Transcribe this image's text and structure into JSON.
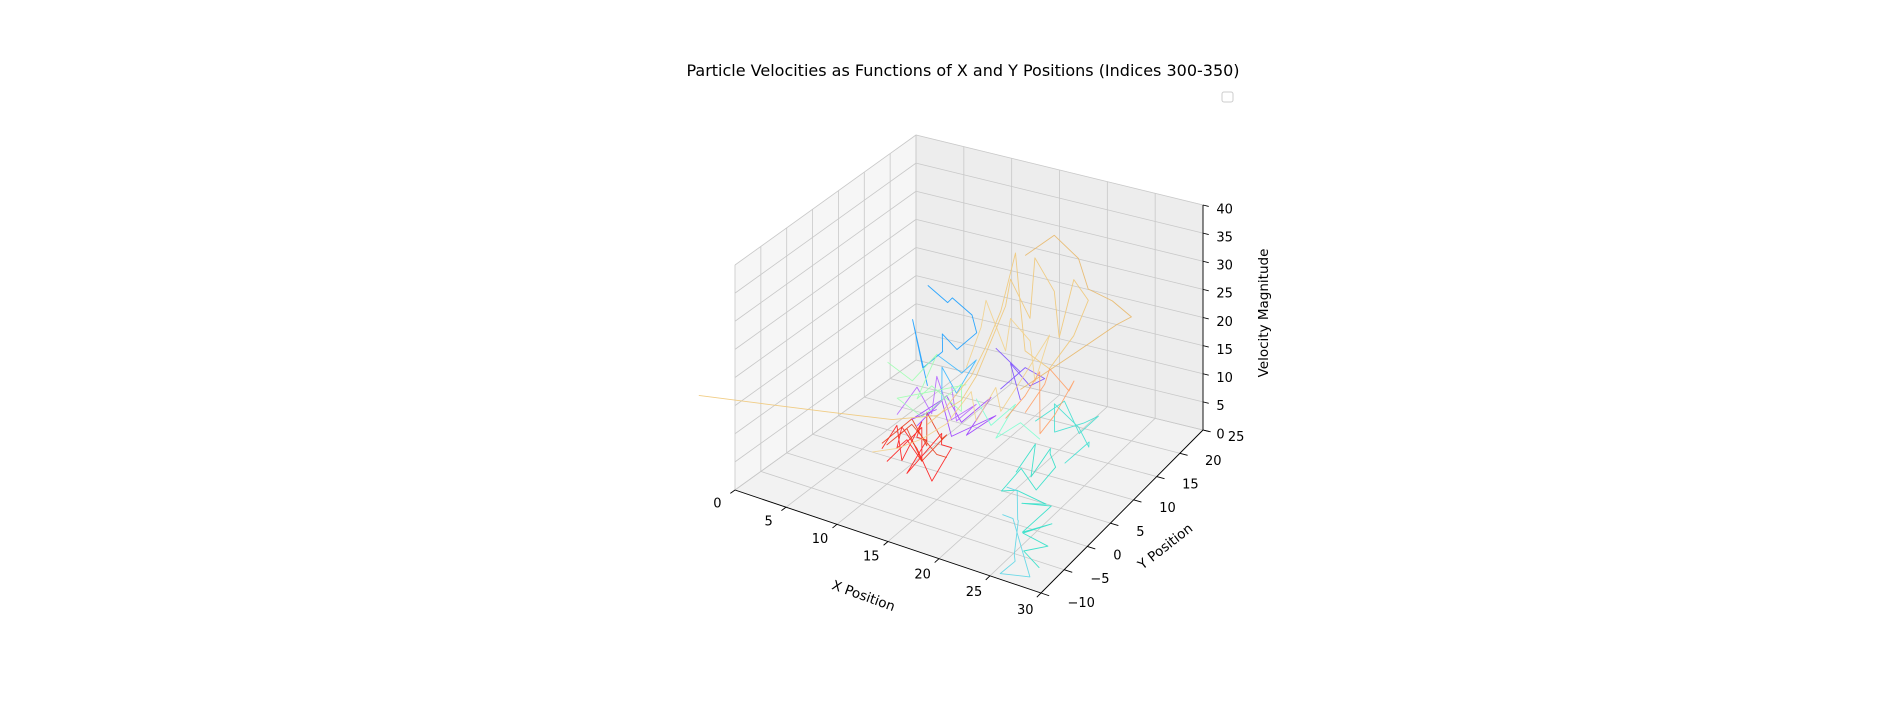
{
  "chart_data": {
    "type": "line3d",
    "title": "Particle Velocities as Functions of X and Y Positions (Indices 300-350)",
    "xlabel": "X Position",
    "ylabel": "Y Position",
    "zlabel": "Velocity Magnitude",
    "xlim": [
      0,
      30
    ],
    "ylim": [
      -10,
      25
    ],
    "zlim": [
      0,
      40
    ],
    "xticks": [
      "0",
      "5",
      "10",
      "15",
      "20",
      "25",
      "30"
    ],
    "yticks": [
      "−10",
      "−5",
      "0",
      "5",
      "10",
      "15",
      "20",
      "25"
    ],
    "zticks": [
      "0",
      "5",
      "10",
      "15",
      "20",
      "25",
      "30",
      "35",
      "40"
    ],
    "grid": true,
    "legend": "upper-right, empty",
    "series": [
      {
        "color": "#ff1a1a",
        "points": [
          [
            9,
            1,
            5
          ],
          [
            10,
            2,
            9
          ],
          [
            11,
            1,
            4
          ],
          [
            12,
            3,
            10
          ],
          [
            11,
            4,
            6
          ],
          [
            13,
            2,
            8
          ],
          [
            12,
            0,
            3
          ],
          [
            14,
            3,
            9
          ],
          [
            13,
            5,
            5
          ],
          [
            15,
            3,
            7
          ],
          [
            14,
            1,
            2
          ],
          [
            12,
            2,
            6
          ],
          [
            10,
            3,
            8
          ],
          [
            9,
            4,
            3
          ],
          [
            11,
            2,
            7
          ],
          [
            13,
            1,
            5
          ],
          [
            12,
            3,
            9
          ],
          [
            10,
            0,
            4
          ]
        ]
      },
      {
        "color": "#e83a1a",
        "points": [
          [
            8,
            3,
            4
          ],
          [
            10,
            5,
            8
          ],
          [
            12,
            4,
            5
          ],
          [
            11,
            6,
            9
          ],
          [
            13,
            5,
            6
          ],
          [
            14,
            4,
            8
          ],
          [
            12,
            3,
            3
          ],
          [
            10,
            4,
            7
          ],
          [
            9,
            2,
            5
          ],
          [
            11,
            3,
            9
          ],
          [
            13,
            4,
            4
          ],
          [
            15,
            2,
            6
          ]
        ]
      },
      {
        "color": "#9a3cff",
        "points": [
          [
            10,
            6,
            6
          ],
          [
            12,
            8,
            11
          ],
          [
            14,
            7,
            8
          ],
          [
            16,
            9,
            12
          ],
          [
            15,
            6,
            7
          ],
          [
            17,
            8,
            10
          ],
          [
            13,
            7,
            5
          ],
          [
            11,
            9,
            9
          ],
          [
            9,
            7,
            6
          ],
          [
            12,
            6,
            10
          ]
        ]
      },
      {
        "color": "#b566ff",
        "points": [
          [
            8,
            6,
            7
          ],
          [
            9,
            8,
            11
          ],
          [
            11,
            7,
            8
          ],
          [
            10,
            10,
            12
          ],
          [
            12,
            9,
            6
          ],
          [
            14,
            10,
            9
          ],
          [
            13,
            8,
            7
          ],
          [
            11,
            11,
            10
          ]
        ]
      },
      {
        "color": "#7b4dff",
        "points": [
          [
            15,
            12,
            18
          ],
          [
            17,
            13,
            14
          ],
          [
            16,
            11,
            12
          ],
          [
            18,
            12,
            16
          ],
          [
            19,
            14,
            13
          ],
          [
            17,
            15,
            10
          ],
          [
            16,
            13,
            15
          ],
          [
            18,
            11,
            11
          ]
        ]
      },
      {
        "color": "#1a9fff",
        "points": [
          [
            6,
            16,
            22
          ],
          [
            7,
            18,
            18
          ],
          [
            8,
            17,
            20
          ],
          [
            9,
            19,
            16
          ],
          [
            10,
            18,
            14
          ],
          [
            9,
            16,
            12
          ],
          [
            8,
            15,
            15
          ],
          [
            7,
            17,
            10
          ],
          [
            6,
            15,
            8
          ],
          [
            6,
            13,
            18
          ],
          [
            7,
            14,
            6
          ]
        ]
      },
      {
        "color": "#3ab8ff",
        "points": [
          [
            8,
            14,
            12
          ],
          [
            10,
            15,
            9
          ],
          [
            12,
            14,
            13
          ],
          [
            11,
            12,
            8
          ],
          [
            9,
            13,
            11
          ],
          [
            10,
            11,
            7
          ]
        ]
      },
      {
        "color": "#9fffb0",
        "points": [
          [
            5,
            10,
            12
          ],
          [
            7,
            11,
            9
          ],
          [
            9,
            12,
            14
          ],
          [
            8,
            10,
            7
          ],
          [
            10,
            9,
            11
          ],
          [
            12,
            11,
            6
          ],
          [
            11,
            13,
            9
          ],
          [
            9,
            9,
            5
          ],
          [
            7,
            8,
            8
          ],
          [
            13,
            10,
            12
          ]
        ]
      },
      {
        "color": "#7dffd0",
        "points": [
          [
            14,
            10,
            10
          ],
          [
            16,
            9,
            7
          ],
          [
            18,
            10,
            11
          ],
          [
            17,
            8,
            6
          ],
          [
            19,
            9,
            9
          ],
          [
            20,
            11,
            5
          ]
        ]
      },
      {
        "color": "#2ee0c8",
        "points": [
          [
            20,
            6,
            3
          ],
          [
            21,
            8,
            7
          ],
          [
            22,
            5,
            4
          ],
          [
            23,
            7,
            8
          ],
          [
            22,
            9,
            5
          ],
          [
            24,
            6,
            6
          ],
          [
            23,
            4,
            3
          ],
          [
            21,
            5,
            5
          ],
          [
            20,
            3,
            2
          ],
          [
            22,
            2,
            4
          ],
          [
            24,
            4,
            1
          ],
          [
            23,
            1,
            3
          ],
          [
            25,
            3,
            2
          ],
          [
            24,
            -1,
            0
          ],
          [
            26,
            1,
            1
          ],
          [
            25,
            -3,
            2
          ],
          [
            27,
            -2,
            0
          ],
          [
            26,
            -5,
            1
          ],
          [
            28,
            -6,
            0
          ]
        ]
      },
      {
        "color": "#40e0d0",
        "points": [
          [
            20,
            10,
            9
          ],
          [
            22,
            12,
            12
          ],
          [
            24,
            11,
            8
          ],
          [
            25,
            13,
            10
          ],
          [
            23,
            14,
            7
          ],
          [
            21,
            12,
            6
          ],
          [
            20,
            14,
            9
          ],
          [
            22,
            15,
            5
          ],
          [
            24,
            13,
            4
          ],
          [
            25,
            11,
            7
          ],
          [
            23,
            10,
            3
          ]
        ]
      },
      {
        "color": "#5cd6e6",
        "points": [
          [
            21,
            2,
            4
          ],
          [
            23,
            0,
            6
          ],
          [
            24,
            -2,
            3
          ],
          [
            25,
            -4,
            5
          ],
          [
            26,
            -7,
            2
          ],
          [
            27,
            -9,
            3
          ],
          [
            26,
            -10,
            1
          ],
          [
            28,
            -8,
            0
          ],
          [
            24,
            -3,
            4
          ],
          [
            22,
            -1,
            2
          ]
        ]
      },
      {
        "color": "#f0c878",
        "points": [
          [
            -12,
            6,
            0
          ],
          [
            -6,
            7,
            1
          ],
          [
            0,
            8,
            2
          ],
          [
            6,
            9,
            3
          ],
          [
            10,
            10,
            5
          ],
          [
            12,
            11,
            8
          ],
          [
            13,
            12,
            12
          ],
          [
            14,
            13,
            18
          ],
          [
            15,
            14,
            24
          ],
          [
            16,
            13,
            30
          ],
          [
            17,
            15,
            22
          ],
          [
            18,
            14,
            34
          ],
          [
            19,
            16,
            27
          ],
          [
            20,
            15,
            20
          ],
          [
            21,
            16,
            30
          ],
          [
            22,
            17,
            26
          ],
          [
            20,
            18,
            18
          ],
          [
            18,
            17,
            12
          ],
          [
            16,
            16,
            15
          ],
          [
            15,
            17,
            22
          ],
          [
            14,
            18,
            30
          ],
          [
            13,
            17,
            20
          ],
          [
            12,
            16,
            14
          ],
          [
            11,
            15,
            9
          ],
          [
            10,
            14,
            6
          ],
          [
            9,
            13,
            3
          ],
          [
            8,
            12,
            1
          ]
        ]
      },
      {
        "color": "#f2d28c",
        "points": [
          [
            13,
            10,
            15
          ],
          [
            14,
            11,
            22
          ],
          [
            15,
            10,
            28
          ],
          [
            16,
            12,
            18
          ],
          [
            17,
            11,
            25
          ],
          [
            18,
            13,
            20
          ],
          [
            19,
            12,
            14
          ],
          [
            20,
            13,
            22
          ],
          [
            19,
            10,
            17
          ],
          [
            17,
            9,
            10
          ],
          [
            16,
            10,
            13
          ],
          [
            15,
            8,
            8
          ],
          [
            14,
            9,
            12
          ],
          [
            12,
            8,
            6
          ],
          [
            10,
            7,
            3
          ],
          [
            8,
            6,
            1
          ],
          [
            6,
            5,
            0
          ]
        ]
      },
      {
        "color": "#e8b86a",
        "points": [
          [
            15,
            18,
            30
          ],
          [
            17,
            20,
            33
          ],
          [
            19,
            21,
            29
          ],
          [
            21,
            19,
            26
          ],
          [
            23,
            20,
            24
          ],
          [
            24,
            22,
            20
          ],
          [
            22,
            23,
            17
          ],
          [
            20,
            22,
            14
          ],
          [
            18,
            21,
            11
          ],
          [
            16,
            20,
            8
          ],
          [
            14,
            19,
            5
          ]
        ]
      },
      {
        "color": "#ffa066",
        "points": [
          [
            18,
            12,
            8
          ],
          [
            19,
            14,
            12
          ],
          [
            20,
            13,
            16
          ],
          [
            21,
            15,
            11
          ],
          [
            22,
            14,
            14
          ],
          [
            21,
            12,
            9
          ],
          [
            20,
            11,
            6
          ],
          [
            19,
            13,
            10
          ],
          [
            18,
            15,
            13
          ],
          [
            17,
            14,
            9
          ],
          [
            16,
            12,
            6
          ]
        ]
      }
    ]
  }
}
